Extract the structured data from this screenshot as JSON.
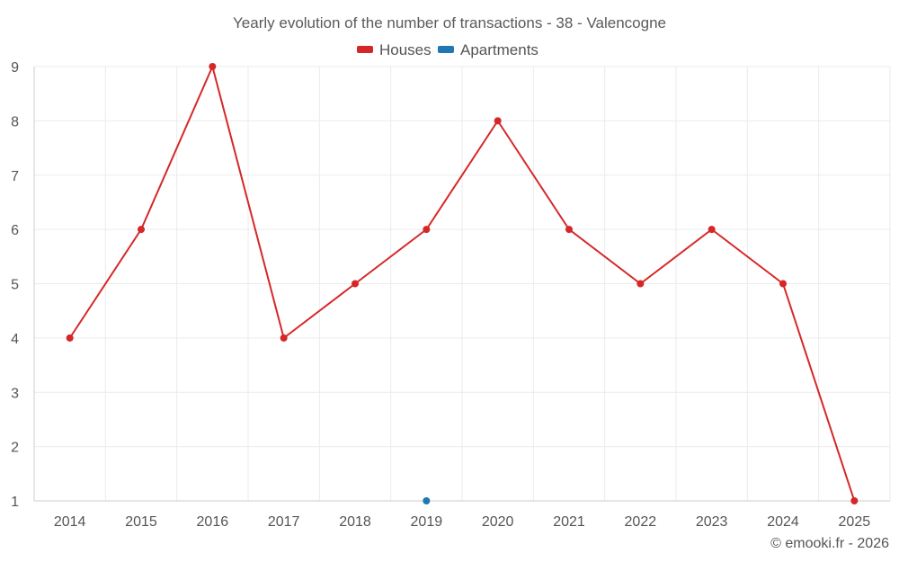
{
  "chart_data": {
    "type": "line",
    "title": "Yearly evolution of the number of transactions - 38 - Valencogne",
    "xlabel": "",
    "ylabel": "",
    "categories": [
      "2014",
      "2015",
      "2016",
      "2017",
      "2018",
      "2019",
      "2020",
      "2021",
      "2022",
      "2023",
      "2024",
      "2025"
    ],
    "ylim": [
      1,
      9
    ],
    "yticks": [
      "1",
      "2",
      "3",
      "4",
      "5",
      "6",
      "7",
      "8",
      "9"
    ],
    "grid": true,
    "legend_position": "top-center",
    "series": [
      {
        "name": "Houses",
        "color": "#d62728",
        "values": [
          4,
          6,
          9,
          4,
          5,
          6,
          8,
          6,
          5,
          6,
          5,
          1
        ]
      },
      {
        "name": "Apartments",
        "color": "#1f77b4",
        "values": [
          null,
          null,
          null,
          null,
          null,
          1,
          null,
          null,
          null,
          null,
          null,
          null
        ]
      }
    ],
    "credit": "© emooki.fr - 2026"
  }
}
